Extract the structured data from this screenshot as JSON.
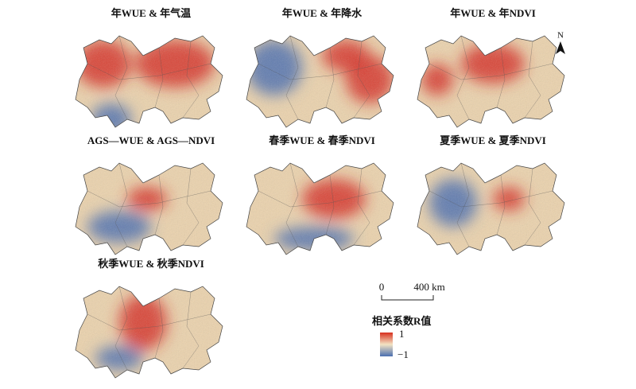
{
  "panels": [
    {
      "title": "年WUE & 年气温"
    },
    {
      "title": "年WUE & 年降水"
    },
    {
      "title": "年WUE & 年NDVI"
    },
    {
      "title": "AGS—WUE & AGS—NDVI"
    },
    {
      "title": "春季WUE & 春季NDVI"
    },
    {
      "title": "夏季WUE & 夏季NDVI"
    },
    {
      "title": "秋季WUE & 秋季NDVI"
    }
  ],
  "north_arrow": "N",
  "scale_bar": {
    "start": "0",
    "end": "400 km"
  },
  "legend": {
    "title": "相关系数R值",
    "max": "1",
    "min": "−1"
  }
}
